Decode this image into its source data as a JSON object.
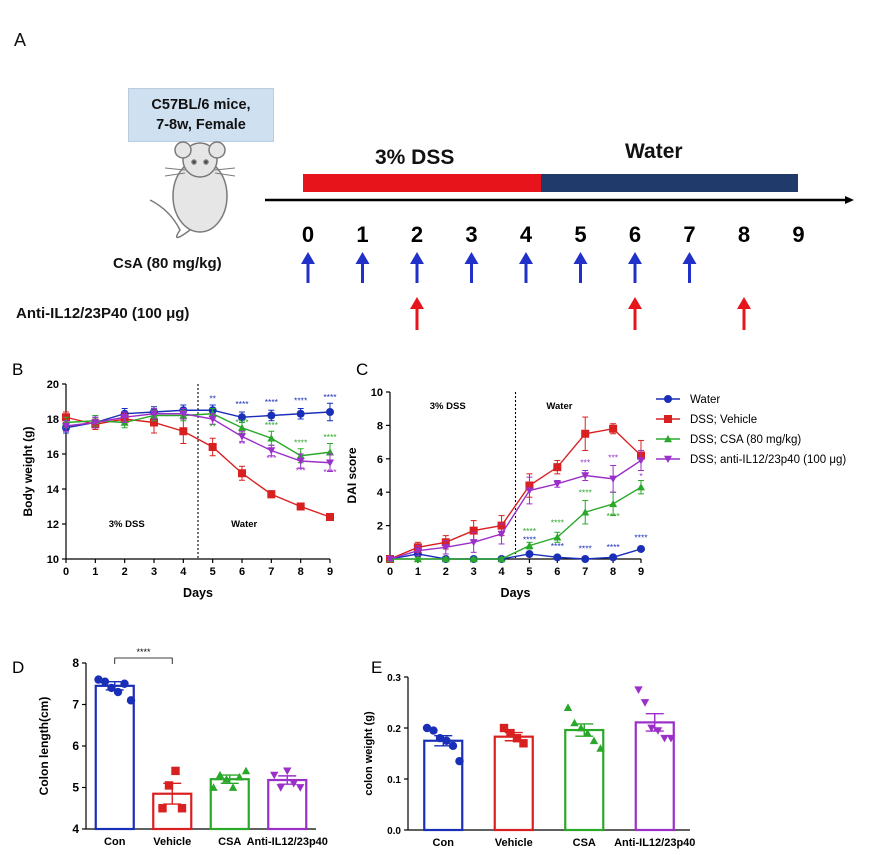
{
  "panel_a": {
    "label": "A",
    "mouse_box": {
      "line1": "C57BL/6 mice,",
      "line2": "7-8w, Female"
    },
    "dss_label": "3% DSS",
    "water_label": "Water",
    "days": [
      "0",
      "1",
      "2",
      "3",
      "4",
      "5",
      "6",
      "7",
      "8",
      "9"
    ],
    "csa_label": "CsA (80 mg/kg)",
    "anti_label": "Anti-IL12/23P40 (100 μg)",
    "csa_days": [
      0,
      1,
      2,
      3,
      4,
      5,
      6,
      7
    ],
    "anti_days": [
      2,
      6,
      8
    ],
    "colors": {
      "dss_bar": "#e8141b",
      "water_bar": "#1f3a6b",
      "csa_arrow": "#2130c8",
      "anti_arrow": "#e8141b"
    }
  },
  "panel_labels": {
    "b": "B",
    "c": "C",
    "d": "D",
    "e": "E"
  },
  "legend": {
    "entries": [
      {
        "name": "Water",
        "color": "#1a2fb8",
        "marker": "circle"
      },
      {
        "name": "DSS; Vehicle",
        "color": "#d92020",
        "marker": "square"
      },
      {
        "name": "DSS; CSA (80 mg/kg)",
        "color": "#2aa82a",
        "marker": "triangle"
      },
      {
        "name": "DSS; anti-IL12/23p40 (100 μg)",
        "color": "#9b2fc9",
        "marker": "triangle-down"
      }
    ]
  },
  "chart_data": [
    {
      "id": "B",
      "type": "line",
      "xlabel": "Days",
      "ylabel": "Body weight (g)",
      "xlim": [
        0,
        9
      ],
      "ylim": [
        10,
        20
      ],
      "xticks": [
        "0",
        "1",
        "2",
        "3",
        "4",
        "5",
        "6",
        "7",
        "8",
        "9"
      ],
      "yticks": [
        "10",
        "12",
        "14",
        "16",
        "18",
        "20"
      ],
      "phase_labels": {
        "left": "3% DSS",
        "right": "Water"
      },
      "divider_x": 4.5,
      "x": [
        0,
        1,
        2,
        3,
        4,
        5,
        6,
        7,
        8,
        9
      ],
      "series": [
        {
          "name": "Water",
          "values": [
            17.5,
            17.8,
            18.3,
            18.4,
            18.5,
            18.5,
            18.1,
            18.2,
            18.3,
            18.4
          ],
          "err": [
            0.3,
            0.3,
            0.3,
            0.3,
            0.3,
            0.3,
            0.3,
            0.3,
            0.3,
            0.5
          ]
        },
        {
          "name": "DSS; Vehicle",
          "values": [
            18.1,
            17.7,
            18.0,
            17.8,
            17.3,
            16.4,
            14.9,
            13.7,
            13.0,
            12.4
          ],
          "err": [
            0.3,
            0.3,
            0.3,
            0.6,
            0.7,
            0.5,
            0.4,
            0.2,
            0.1,
            0.1
          ]
        },
        {
          "name": "DSS; CSA (80 mg/kg)",
          "values": [
            17.8,
            17.9,
            17.8,
            18.2,
            18.2,
            18.3,
            17.5,
            16.9,
            15.9,
            16.1
          ],
          "err": [
            0.3,
            0.3,
            0.3,
            0.3,
            0.3,
            0.3,
            0.3,
            0.4,
            0.4,
            0.5
          ]
        },
        {
          "name": "DSS; anti-IL12/23p40 (100 μg)",
          "values": [
            17.6,
            17.8,
            18.1,
            18.3,
            18.3,
            18.0,
            17.0,
            16.2,
            15.6,
            15.5
          ],
          "err": [
            0.3,
            0.3,
            0.3,
            0.3,
            0.3,
            0.3,
            0.3,
            0.3,
            0.4,
            0.5
          ]
        }
      ],
      "annotations": [
        {
          "series": 0,
          "x": 5,
          "y": 19.0,
          "text": "**"
        },
        {
          "series": 0,
          "x": 6,
          "y": 18.7,
          "text": "****"
        },
        {
          "series": 0,
          "x": 7,
          "y": 18.8,
          "text": "****"
        },
        {
          "series": 0,
          "x": 8,
          "y": 18.9,
          "text": "****"
        },
        {
          "series": 0,
          "x": 9,
          "y": 19.1,
          "text": "****"
        },
        {
          "series": 2,
          "x": 5,
          "y": 17.4,
          "text": "**"
        },
        {
          "series": 2,
          "x": 6,
          "y": 17.65,
          "text": "****"
        },
        {
          "series": 2,
          "x": 7,
          "y": 17.5,
          "text": "****"
        },
        {
          "series": 2,
          "x": 8,
          "y": 16.5,
          "text": "****"
        },
        {
          "series": 2,
          "x": 9,
          "y": 16.8,
          "text": "****"
        },
        {
          "series": 3,
          "x": 6,
          "y": 16.4,
          "text": "**"
        },
        {
          "series": 3,
          "x": 7,
          "y": 15.6,
          "text": "***"
        },
        {
          "series": 3,
          "x": 8,
          "y": 14.9,
          "text": "***"
        },
        {
          "series": 3,
          "x": 9,
          "y": 14.8,
          "text": "****"
        }
      ]
    },
    {
      "id": "C",
      "type": "line",
      "xlabel": "Days",
      "ylabel": "DAI score",
      "xlim": [
        0,
        9
      ],
      "ylim": [
        0,
        10
      ],
      "xticks": [
        "0",
        "1",
        "2",
        "3",
        "4",
        "5",
        "6",
        "7",
        "8",
        "9"
      ],
      "yticks": [
        "0",
        "2",
        "4",
        "6",
        "8",
        "10"
      ],
      "phase_labels": {
        "left": "3% DSS",
        "right": "Water"
      },
      "divider_x": 4.5,
      "x": [
        0,
        1,
        2,
        3,
        4,
        5,
        6,
        7,
        8,
        9
      ],
      "series": [
        {
          "name": "Water",
          "values": [
            0,
            0.3,
            0,
            0,
            0,
            0.3,
            0.1,
            0,
            0.1,
            0.6
          ],
          "err": [
            0.1,
            0.1,
            0.1,
            0.1,
            0.1,
            0.1,
            0.1,
            0.1,
            0.1,
            0.1
          ]
        },
        {
          "name": "DSS; Vehicle",
          "values": [
            0,
            0.7,
            1.0,
            1.7,
            2.0,
            4.4,
            5.5,
            7.5,
            7.8,
            6.2
          ],
          "err": [
            0.2,
            0.3,
            0.4,
            0.6,
            0.6,
            0.7,
            0.4,
            1.0,
            0.3,
            0.9
          ]
        },
        {
          "name": "DSS; CSA (80 mg/kg)",
          "values": [
            0,
            0,
            0,
            0,
            0,
            0.8,
            1.3,
            2.8,
            3.3,
            4.3
          ],
          "err": [
            0.1,
            0.1,
            0.1,
            0.1,
            0.1,
            0.2,
            0.3,
            0.7,
            0.7,
            0.4
          ]
        },
        {
          "name": "DSS; anti-IL12/23p40 (100 μg)",
          "values": [
            0,
            0.5,
            0.7,
            1.0,
            1.5,
            4.1,
            4.5,
            5.0,
            4.8,
            5.9
          ],
          "err": [
            0.1,
            0.3,
            0.4,
            0.6,
            0.6,
            0.8,
            0.2,
            0.3,
            0.8,
            0.6
          ]
        }
      ],
      "annotations": [
        {
          "series": 0,
          "x": 5,
          "y": 1.0,
          "text": "****"
        },
        {
          "series": 0,
          "x": 6,
          "y": 0.6,
          "text": "****"
        },
        {
          "series": 0,
          "x": 7,
          "y": 0.45,
          "text": "****"
        },
        {
          "series": 0,
          "x": 8,
          "y": 0.55,
          "text": "****"
        },
        {
          "series": 0,
          "x": 9,
          "y": 1.1,
          "text": "****"
        },
        {
          "series": 2,
          "x": 5,
          "y": 1.5,
          "text": "****"
        },
        {
          "series": 2,
          "x": 6,
          "y": 2.0,
          "text": "****"
        },
        {
          "series": 2,
          "x": 7,
          "y": 3.8,
          "text": "****"
        },
        {
          "series": 2,
          "x": 8,
          "y": 2.4,
          "text": "****"
        },
        {
          "series": 3,
          "x": 7,
          "y": 5.6,
          "text": "***"
        },
        {
          "series": 3,
          "x": 8,
          "y": 5.9,
          "text": "***"
        },
        {
          "series": 3,
          "x": 9,
          "y": 4.8,
          "text": "*"
        }
      ]
    },
    {
      "id": "D",
      "type": "bar",
      "ylabel": "Colon length(cm)",
      "categories": [
        "Con",
        "Vehicle",
        "CSA",
        "Anti-IL12/23p40"
      ],
      "values": [
        7.45,
        4.85,
        5.2,
        5.18
      ],
      "err": [
        0.1,
        0.25,
        0.1,
        0.1
      ],
      "colors": [
        "#1a2fb8",
        "#d92020",
        "#2aa82a",
        "#9b2fc9"
      ],
      "markers": [
        "circle",
        "square",
        "triangle",
        "triangle-down"
      ],
      "points": [
        [
          7.6,
          7.55,
          7.4,
          7.3,
          7.5,
          7.1
        ],
        [
          4.5,
          5.05,
          5.4,
          4.5
        ],
        [
          5.0,
          5.3,
          5.2,
          5.0,
          5.25,
          5.4
        ],
        [
          5.3,
          5.0,
          5.4,
          5.1,
          5.0
        ]
      ],
      "ylim": [
        4,
        8
      ],
      "yticks": [
        "4",
        "5",
        "6",
        "7",
        "8"
      ],
      "significance": {
        "from": 0,
        "to": 1,
        "text": "****"
      }
    },
    {
      "id": "E",
      "type": "bar",
      "ylabel": "colon weight (g)",
      "categories": [
        "Con",
        "Vehicle",
        "CSA",
        "Anti-IL12/23p40"
      ],
      "values": [
        0.175,
        0.183,
        0.196,
        0.211
      ],
      "err": [
        0.01,
        0.008,
        0.012,
        0.017
      ],
      "colors": [
        "#1a2fb8",
        "#d92020",
        "#2aa82a",
        "#9b2fc9"
      ],
      "markers": [
        "circle",
        "square",
        "triangle",
        "triangle-down"
      ],
      "points": [
        [
          0.2,
          0.195,
          0.18,
          0.175,
          0.165,
          0.135
        ],
        [
          0.2,
          0.19,
          0.18,
          0.17
        ],
        [
          0.24,
          0.21,
          0.2,
          0.19,
          0.175,
          0.16
        ],
        [
          0.275,
          0.25,
          0.2,
          0.195,
          0.18,
          0.18
        ]
      ],
      "ylim": [
        0,
        0.3
      ],
      "yticks": [
        "0.0",
        "0.1",
        "0.2",
        "0.3"
      ]
    }
  ]
}
